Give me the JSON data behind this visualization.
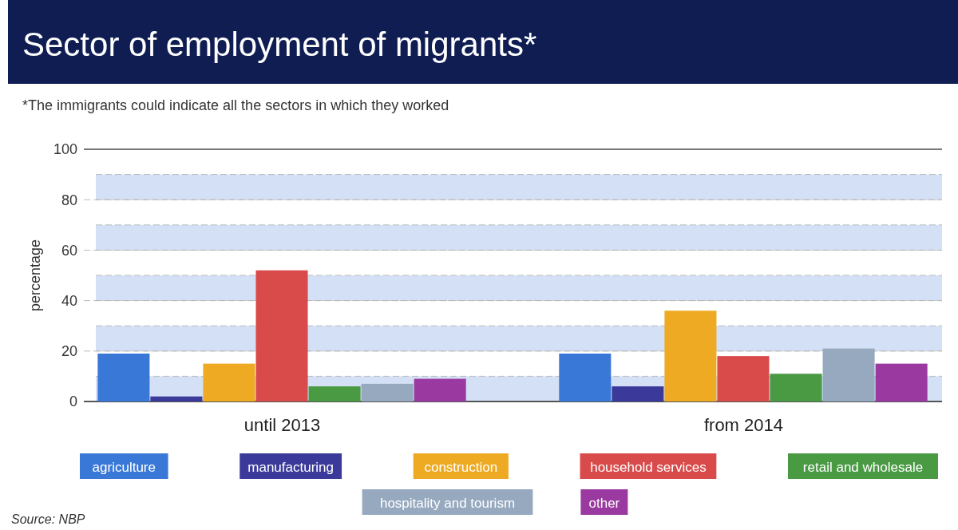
{
  "chart_data": {
    "type": "bar",
    "title": "Sector of employment of migrants*",
    "subtitle": "*The immigrants could indicate all the sectors in which they worked",
    "ylabel": "percentage",
    "categories": [
      "until 2013",
      "from 2014"
    ],
    "series": [
      {
        "name": "agriculture",
        "color": "#3a78d8",
        "values": [
          19,
          19
        ]
      },
      {
        "name": "manufacturing",
        "color": "#3b3a9a",
        "values": [
          2,
          6
        ]
      },
      {
        "name": "construction",
        "color": "#eeaa22",
        "values": [
          15,
          36
        ]
      },
      {
        "name": "household services",
        "color": "#d94b4b",
        "values": [
          52,
          18
        ]
      },
      {
        "name": "retail and wholesale",
        "color": "#4a9a44",
        "values": [
          6,
          11
        ]
      },
      {
        "name": "hospitality and tourism",
        "color": "#96a9bf",
        "values": [
          7,
          21
        ]
      },
      {
        "name": "other",
        "color": "#9a3aa0",
        "values": [
          9,
          15
        ]
      }
    ],
    "ylim": [
      0,
      100
    ],
    "yticks": [
      0,
      20,
      40,
      60,
      80,
      100
    ],
    "grid": "y",
    "legend": "bottom",
    "bands": [
      {
        "axis": "y",
        "from": 0,
        "to": 10,
        "color": "#d3e0f5"
      },
      {
        "axis": "y",
        "from": 20,
        "to": 30,
        "color": "#d3e0f5"
      },
      {
        "axis": "y",
        "from": 40,
        "to": 50,
        "color": "#d3e0f5"
      },
      {
        "axis": "y",
        "from": 60,
        "to": 70,
        "color": "#d3e0f5"
      },
      {
        "axis": "y",
        "from": 80,
        "to": 90,
        "color": "#d3e0f5"
      }
    ],
    "annotations": [
      "Source: NBP"
    ]
  }
}
